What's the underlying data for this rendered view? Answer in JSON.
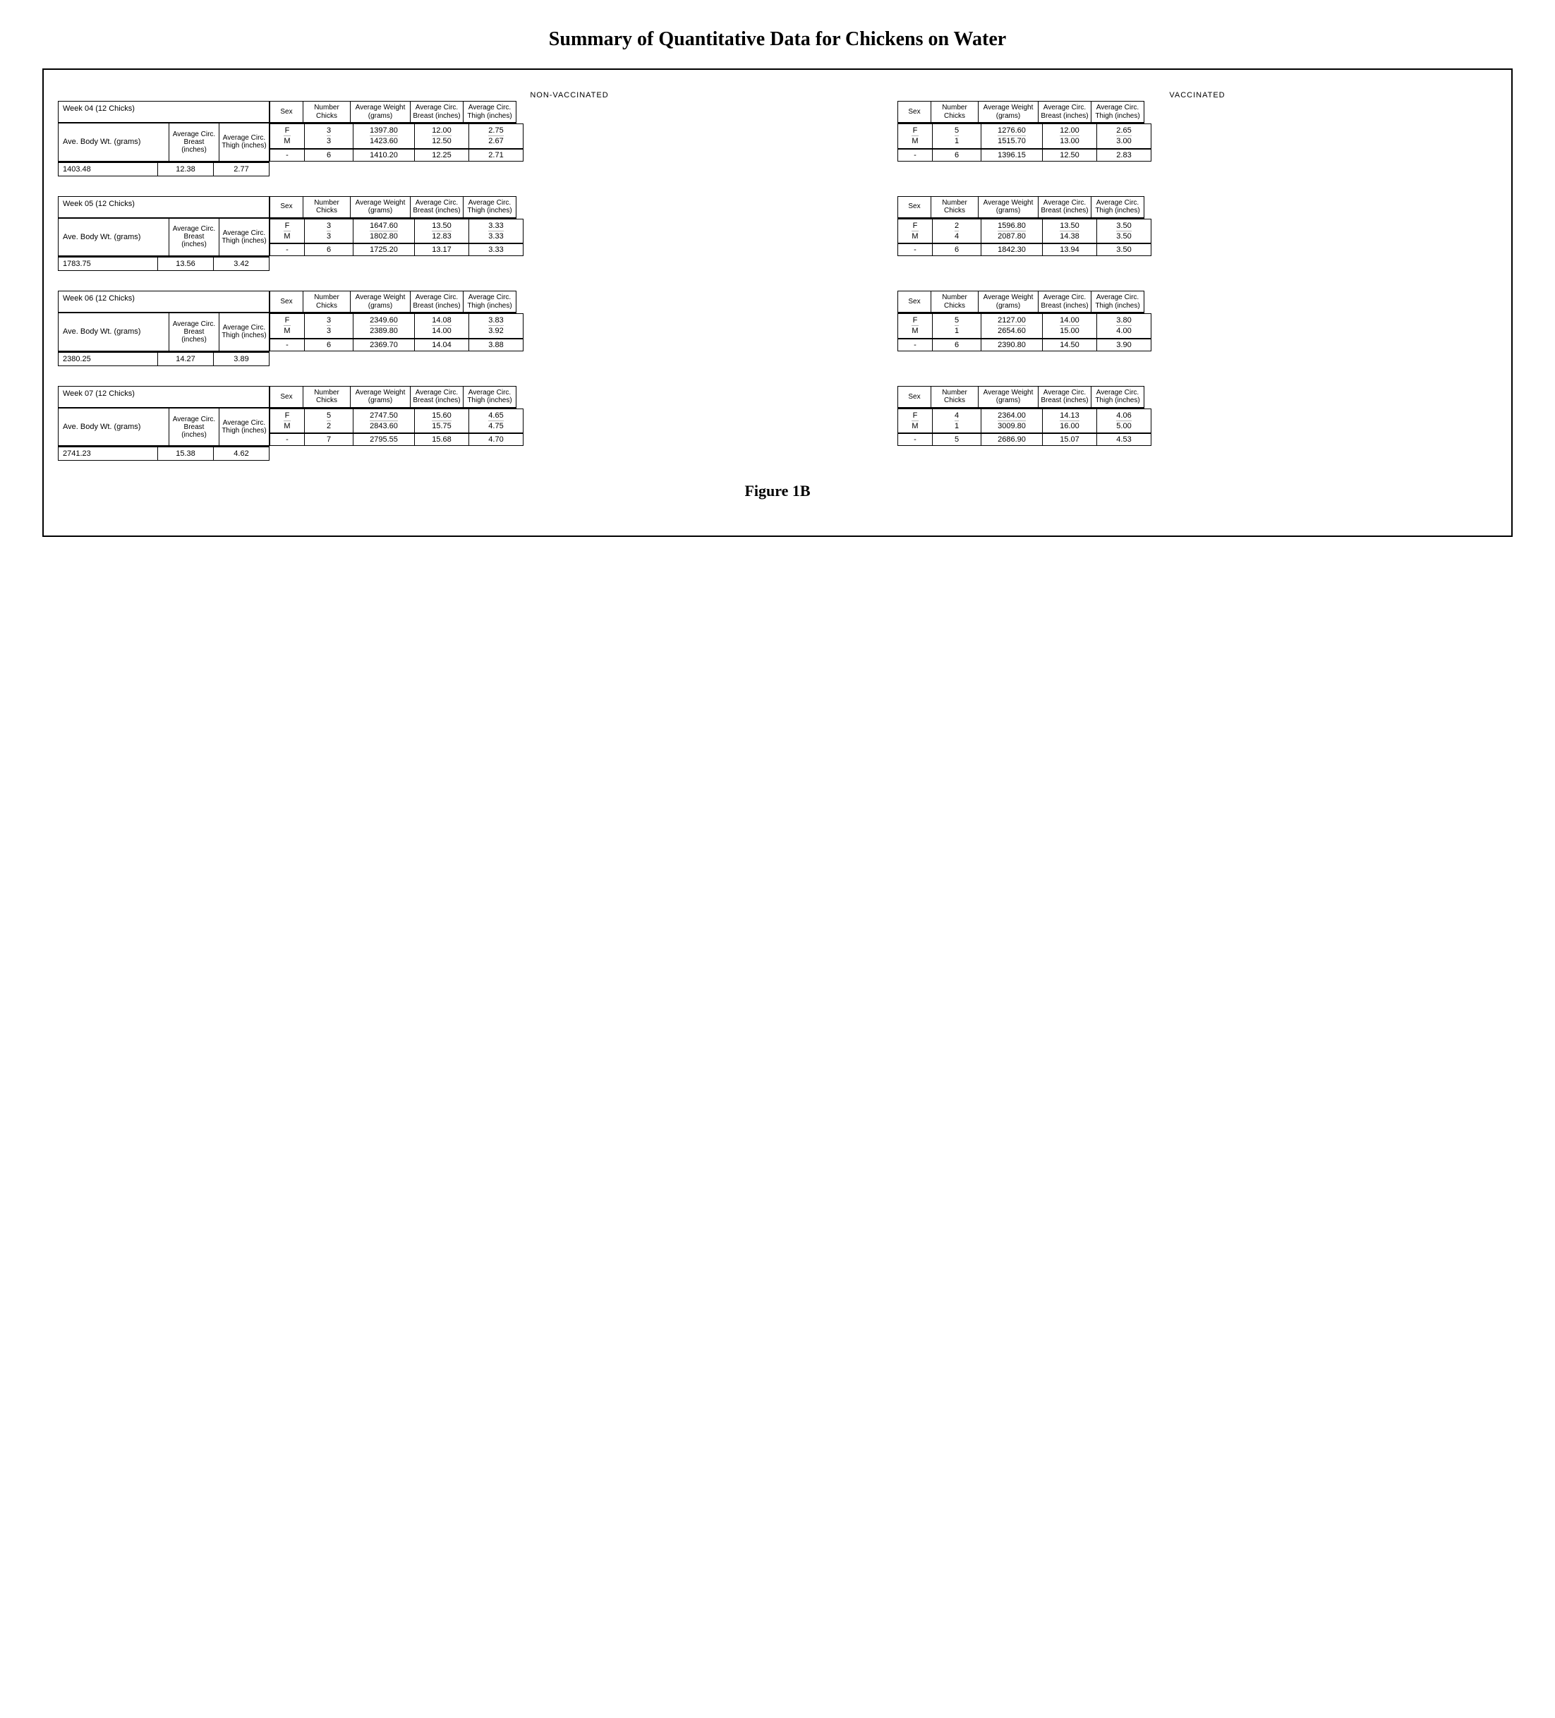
{
  "title": "Summary of Quantitative Data for Chickens on Water",
  "figure_label": "Figure 1B",
  "group_labels": {
    "nonvacc": "NON-VACCINATED",
    "vacc": "VACCINATED"
  },
  "col_headers": {
    "sex": "Sex",
    "num": "Number Chicks",
    "wt": "Average Weight (grams)",
    "breast": "Average Circ. Breast (inches)",
    "thigh": "Average Circ. Thigh (inches)"
  },
  "left_labels": {
    "body": "Ave. Body Wt. (grams)",
    "breast_hdr": "Average Circ. Breast (inches)",
    "thigh_hdr": "Average Circ. Thigh (inches)"
  },
  "weeks": [
    {
      "name": "Week 04 (12 Chicks)",
      "summary": {
        "wt": "1403.48",
        "breast": "12.38",
        "thigh": "2.77"
      },
      "nonvacc": {
        "fm": {
          "sex_f": "F",
          "sex_m": "M",
          "num_f": "3",
          "num_m": "3",
          "wt_f": "1397.80",
          "wt_m": "1423.60",
          "breast_f": "12.00",
          "breast_m": "12.50",
          "thigh_f": "2.75",
          "thigh_m": "2.67"
        },
        "all": {
          "sex": "-",
          "num": "6",
          "wt": "1410.20",
          "breast": "12.25",
          "thigh": "2.71"
        }
      },
      "vacc": {
        "fm": {
          "sex_f": "F",
          "sex_m": "M",
          "num_f": "5",
          "num_m": "1",
          "wt_f": "1276.60",
          "wt_m": "1515.70",
          "breast_f": "12.00",
          "breast_m": "13.00",
          "thigh_f": "2.65",
          "thigh_m": "3.00"
        },
        "all": {
          "sex": "-",
          "num": "6",
          "wt": "1396.15",
          "breast": "12.50",
          "thigh": "2.83"
        }
      }
    },
    {
      "name": "Week 05 (12 Chicks)",
      "summary": {
        "wt": "1783.75",
        "breast": "13.56",
        "thigh": "3.42"
      },
      "nonvacc": {
        "fm": {
          "sex_f": "F",
          "sex_m": "M",
          "num_f": "3",
          "num_m": "3",
          "wt_f": "1647.60",
          "wt_m": "1802.80",
          "breast_f": "13.50",
          "breast_m": "12.83",
          "thigh_f": "3.33",
          "thigh_m": "3.33"
        },
        "all": {
          "sex": "-",
          "num": "6",
          "wt": "1725.20",
          "breast": "13.17",
          "thigh": "3.33"
        }
      },
      "vacc": {
        "fm": {
          "sex_f": "F",
          "sex_m": "M",
          "num_f": "2",
          "num_m": "4",
          "wt_f": "1596.80",
          "wt_m": "2087.80",
          "breast_f": "13.50",
          "breast_m": "14.38",
          "thigh_f": "3.50",
          "thigh_m": "3.50"
        },
        "all": {
          "sex": "-",
          "num": "6",
          "wt": "1842.30",
          "breast": "13.94",
          "thigh": "3.50"
        }
      }
    },
    {
      "name": "Week 06 (12 Chicks)",
      "summary": {
        "wt": "2380.25",
        "breast": "14.27",
        "thigh": "3.89"
      },
      "nonvacc": {
        "fm": {
          "sex_f": "F",
          "sex_m": "M",
          "num_f": "3",
          "num_m": "3",
          "wt_f": "2349.60",
          "wt_m": "2389.80",
          "breast_f": "14.08",
          "breast_m": "14.00",
          "thigh_f": "3.83",
          "thigh_m": "3.92"
        },
        "all": {
          "sex": "-",
          "num": "6",
          "wt": "2369.70",
          "breast": "14.04",
          "thigh": "3.88"
        }
      },
      "vacc": {
        "fm": {
          "sex_f": "F",
          "sex_m": "M",
          "num_f": "5",
          "num_m": "1",
          "wt_f": "2127.00",
          "wt_m": "2654.60",
          "breast_f": "14.00",
          "breast_m": "15.00",
          "thigh_f": "3.80",
          "thigh_m": "4.00"
        },
        "all": {
          "sex": "-",
          "num": "6",
          "wt": "2390.80",
          "breast": "14.50",
          "thigh": "3.90"
        }
      }
    },
    {
      "name": "Week 07 (12 Chicks)",
      "summary": {
        "wt": "2741.23",
        "breast": "15.38",
        "thigh": "4.62"
      },
      "nonvacc": {
        "fm": {
          "sex_f": "F",
          "sex_m": "M",
          "num_f": "5",
          "num_m": "2",
          "wt_f": "2747.50",
          "wt_m": "2843.60",
          "breast_f": "15.60",
          "breast_m": "15.75",
          "thigh_f": "4.65",
          "thigh_m": "4.75"
        },
        "all": {
          "sex": "-",
          "num": "7",
          "wt": "2795.55",
          "breast": "15.68",
          "thigh": "4.70"
        }
      },
      "vacc": {
        "fm": {
          "sex_f": "F",
          "sex_m": "M",
          "num_f": "4",
          "num_m": "1",
          "wt_f": "2364.00",
          "wt_m": "3009.80",
          "breast_f": "14.13",
          "breast_m": "16.00",
          "thigh_f": "4.06",
          "thigh_m": "5.00"
        },
        "all": {
          "sex": "-",
          "num": "5",
          "wt": "2686.90",
          "breast": "15.07",
          "thigh": "4.53"
        }
      }
    }
  ]
}
